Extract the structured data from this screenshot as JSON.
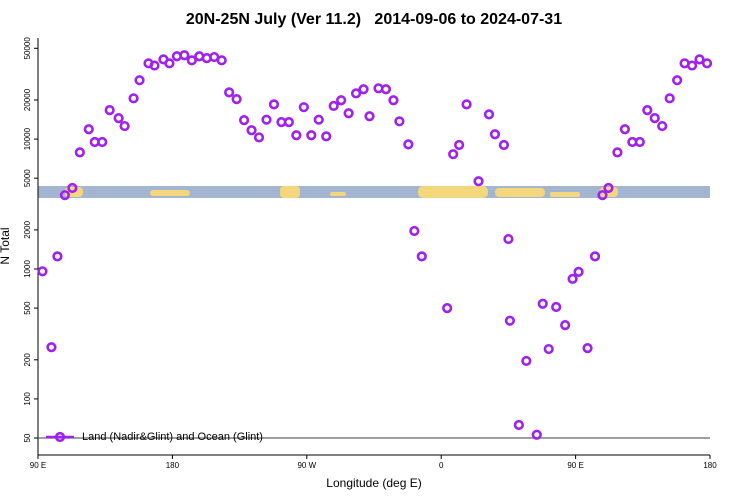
{
  "chart_data": {
    "type": "scatter",
    "title": "20N-25N July (Ver 11.2)   2014-09-06 to 2024-07-31",
    "xlabel": "Longitude (deg E)",
    "ylabel": "N Total",
    "log_y": true,
    "legend": "lower left",
    "reference_line": 50,
    "x": [
      93,
      99,
      103,
      108,
      113,
      118,
      124,
      128,
      133,
      138,
      144,
      148,
      154,
      158,
      164,
      168,
      174,
      178,
      183,
      188,
      193,
      198,
      203,
      208,
      213,
      218,
      223,
      228,
      233,
      238,
      243,
      248,
      253,
      258,
      263,
      268,
      273,
      278,
      283,
      288,
      293,
      298,
      303,
      308,
      312,
      318,
      323,
      328,
      332,
      338,
      342,
      347,
      364,
      368,
      372,
      377,
      385,
      392,
      396,
      402,
      405,
      406,
      412,
      417,
      424,
      428,
      432,
      437,
      443,
      448,
      452,
      458,
      463,
      468,
      472,
      478,
      483,
      488,
      493,
      498,
      503,
      508,
      513,
      518,
      523,
      528,
      533,
      538
    ],
    "series": [
      {
        "name": "Land (Nadir&Glint) and Ocean (Glint)",
        "color": "#a020f0",
        "values": [
          960,
          250,
          1250,
          3700,
          4200,
          7900,
          11900,
          9500,
          9500,
          16700,
          14500,
          12600,
          20600,
          28400,
          38300,
          36800,
          41100,
          38300,
          43400,
          44200,
          40400,
          43400,
          42000,
          42800,
          40400,
          22900,
          20300,
          14000,
          11700,
          10300,
          14100,
          18500,
          13500,
          13500,
          10700,
          17600,
          10700,
          14100,
          10500,
          18000,
          19900,
          15800,
          22500,
          24200,
          15000,
          24600,
          24200,
          19900,
          13700,
          9100,
          1960,
          1250,
          500,
          7650,
          9000,
          18500,
          4740,
          15500,
          10900,
          9000,
          1700,
          400,
          63,
          196,
          53,
          540,
          242,
          510,
          370,
          840,
          950,
          246,
          1250,
          3700,
          4200,
          7900,
          11900,
          9500,
          9500,
          16700,
          14500,
          12600,
          20600,
          28400,
          38300,
          36800,
          41100,
          38300
        ]
      }
    ],
    "xlim": [
      90,
      540
    ],
    "xticks": [
      {
        "value": 90,
        "label": "90 E"
      },
      180,
      {
        "value": 270,
        "label": "90 W"
      },
      {
        "value": 360,
        "label": "0"
      },
      {
        "value": 450,
        "label": "90 E"
      },
      {
        "value": 540,
        "label": "180"
      }
    ],
    "ylim": [
      37,
      60000
    ],
    "yticks": [
      50,
      100,
      200,
      500,
      1000,
      2000,
      5000,
      10000,
      20000,
      50000
    ]
  }
}
